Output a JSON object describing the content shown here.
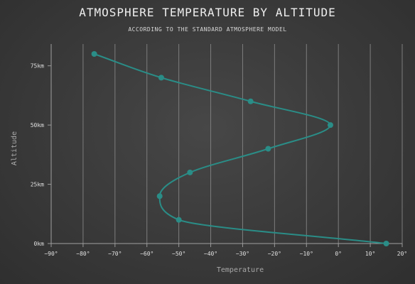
{
  "chart_data": {
    "type": "line",
    "title": "ATMOSPHERE TEMPERATURE BY ALTITUDE",
    "subtitle": "ACCORDING TO THE STANDARD ATMOSPHERE MODEL",
    "xlabel": "Temperature",
    "ylabel": "Altitude",
    "xlim": [
      -90,
      20
    ],
    "ylim": [
      0,
      80
    ],
    "x_ticks": [
      -90,
      -80,
      -70,
      -60,
      -50,
      -40,
      -30,
      -20,
      -10,
      0,
      10,
      20
    ],
    "x_tick_labels": [
      "−90°",
      "−80°",
      "−70°",
      "−60°",
      "−50°",
      "−40°",
      "−30°",
      "−20°",
      "−10°",
      "0°",
      "10°",
      "20°"
    ],
    "y_ticks": [
      0,
      25,
      50,
      75
    ],
    "y_tick_labels": [
      "0km",
      "25km",
      "50km",
      "75km"
    ],
    "grid": "vertical",
    "smooth": true,
    "series": [
      {
        "color": "#2a8d87",
        "points": [
          {
            "x": 15,
            "y": 0
          },
          {
            "x": -50,
            "y": 10
          },
          {
            "x": -56,
            "y": 20
          },
          {
            "x": -46.5,
            "y": 30
          },
          {
            "x": -22,
            "y": 40
          },
          {
            "x": -2.5,
            "y": 50
          },
          {
            "x": -27.5,
            "y": 60
          },
          {
            "x": -55.5,
            "y": 70
          },
          {
            "x": -76.5,
            "y": 80
          }
        ]
      }
    ]
  }
}
